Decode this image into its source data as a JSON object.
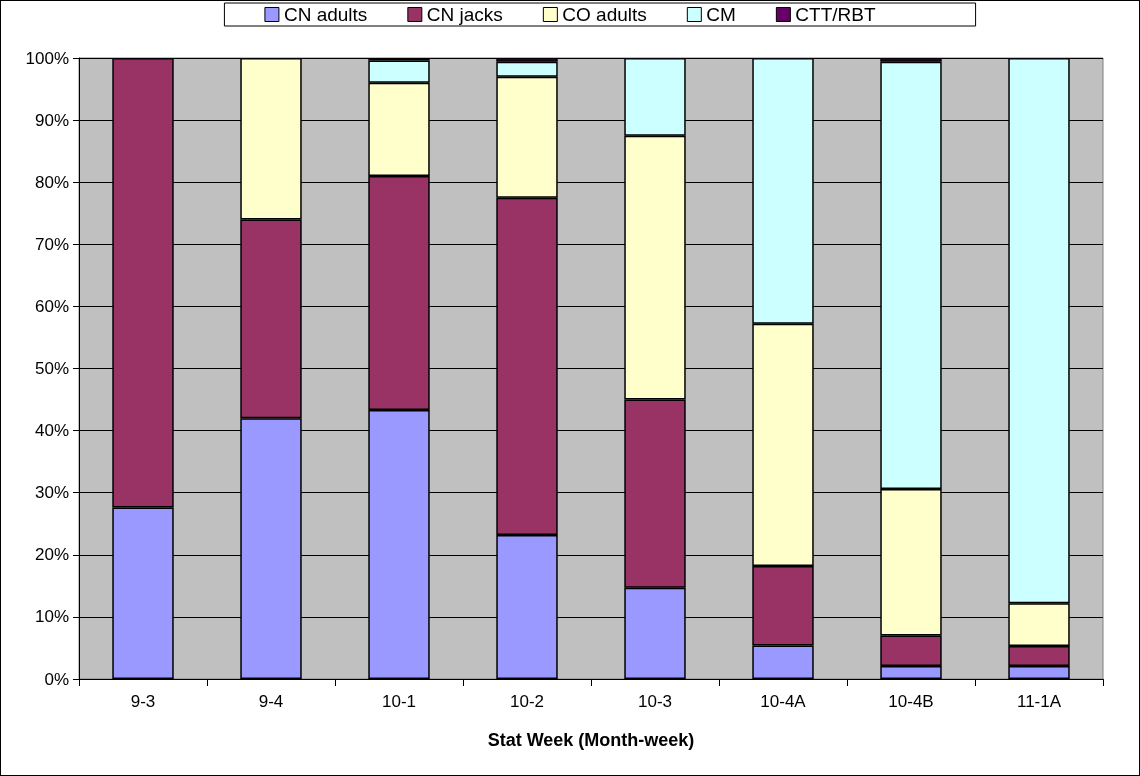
{
  "chart_data": {
    "type": "bar",
    "stacked": true,
    "xlabel": "Stat Week (Month-week)",
    "categories": [
      "9-3",
      "9-4",
      "10-1",
      "10-2",
      "10-3",
      "10-4A",
      "10-4B",
      "11-1A"
    ],
    "series": [
      {
        "name": "CN adults",
        "color": "#9999ff",
        "values": [
          27.6,
          42,
          43.3,
          23.2,
          14.7,
          5.4,
          2.1,
          2.1
        ]
      },
      {
        "name": "CN jacks",
        "color": "#993366",
        "values": [
          72.4,
          32,
          37.7,
          54.3,
          30.3,
          12.8,
          4.9,
          3.2
        ]
      },
      {
        "name": "CO adults",
        "color": "#ffffcc",
        "values": [
          0,
          26,
          15,
          19.5,
          42.5,
          39,
          23.6,
          6.9
        ]
      },
      {
        "name": "CM",
        "color": "#ccffff",
        "values": [
          0,
          0,
          3.6,
          2.4,
          12.5,
          42.8,
          68.8,
          87.8
        ]
      },
      {
        "name": "CTT/RBT",
        "color": "#660066",
        "values": [
          0,
          0,
          0.4,
          0.6,
          0,
          0,
          0.6,
          0
        ]
      }
    ],
    "ylim": [
      0,
      100
    ],
    "yticks": [
      {
        "value": 0,
        "label": "0%"
      },
      {
        "value": 10,
        "label": "10%"
      },
      {
        "value": 20,
        "label": "20%"
      },
      {
        "value": 30,
        "label": "30%"
      },
      {
        "value": 40,
        "label": "40%"
      },
      {
        "value": 50,
        "label": "50%"
      },
      {
        "value": 60,
        "label": "60%"
      },
      {
        "value": 70,
        "label": "70%"
      },
      {
        "value": 80,
        "label": "80%"
      },
      {
        "value": 90,
        "label": "90%"
      },
      {
        "value": 100,
        "label": "100%"
      }
    ],
    "grid": "y",
    "legend": "top"
  }
}
